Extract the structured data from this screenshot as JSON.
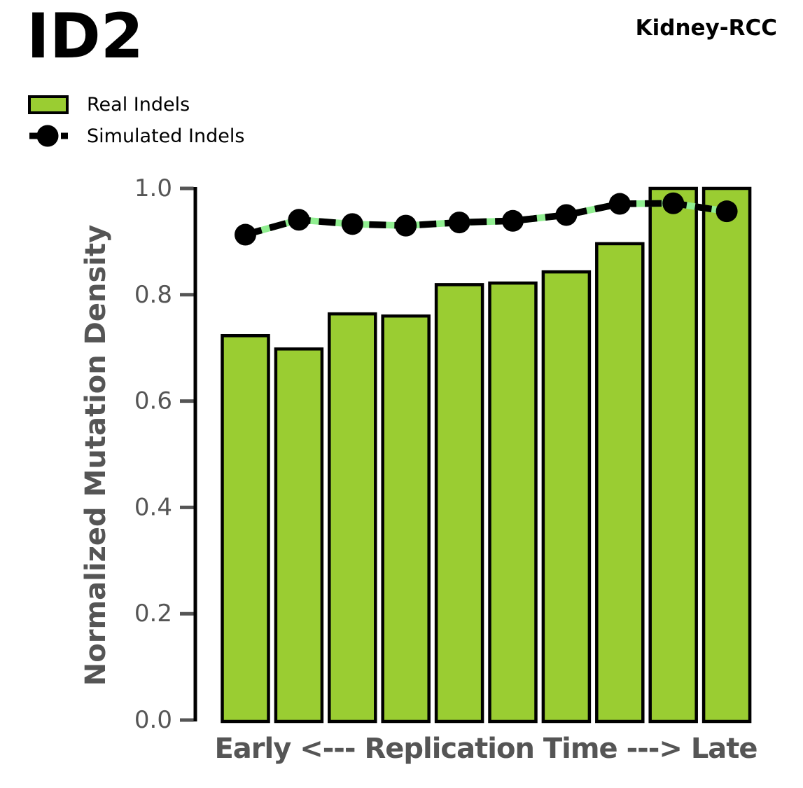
{
  "header": {
    "title": "ID2",
    "cohort": "Kidney-RCC"
  },
  "legend": {
    "items": [
      {
        "label": "Real Indels",
        "marker": "green-bar-swatch"
      },
      {
        "label": "Simulated Indels",
        "marker": "black-dashed-line-dot"
      }
    ]
  },
  "chart_data": {
    "type": "bar",
    "title": "ID2",
    "annotation": "Kidney-RCC",
    "xlabel": "Early <--- Replication Time ---> Late",
    "ylabel": "Normalized Mutation Density",
    "ylim": [
      0.0,
      1.0
    ],
    "ytick_labels": [
      "0.0",
      "0.2",
      "0.4",
      "0.6",
      "0.8",
      "1.0"
    ],
    "n_bins": 10,
    "grid": false,
    "legend_position": "upper left",
    "series": [
      {
        "name": "Real Indels",
        "type": "bar",
        "values": [
          0.723,
          0.698,
          0.764,
          0.76,
          0.819,
          0.822,
          0.843,
          0.896,
          1.0,
          1.0
        ]
      },
      {
        "name": "Simulated Indels",
        "type": "line",
        "values": [
          0.913,
          0.941,
          0.933,
          0.93,
          0.936,
          0.939,
          0.95,
          0.971,
          0.972,
          0.957
        ]
      }
    ],
    "colors": {
      "real_fill": "#9ACD32",
      "bar_edge": "#000000",
      "sim_line": "#000000",
      "sim_dash_gap": "#90EE90",
      "axis_text": "#555555",
      "spine": "#000000"
    }
  }
}
